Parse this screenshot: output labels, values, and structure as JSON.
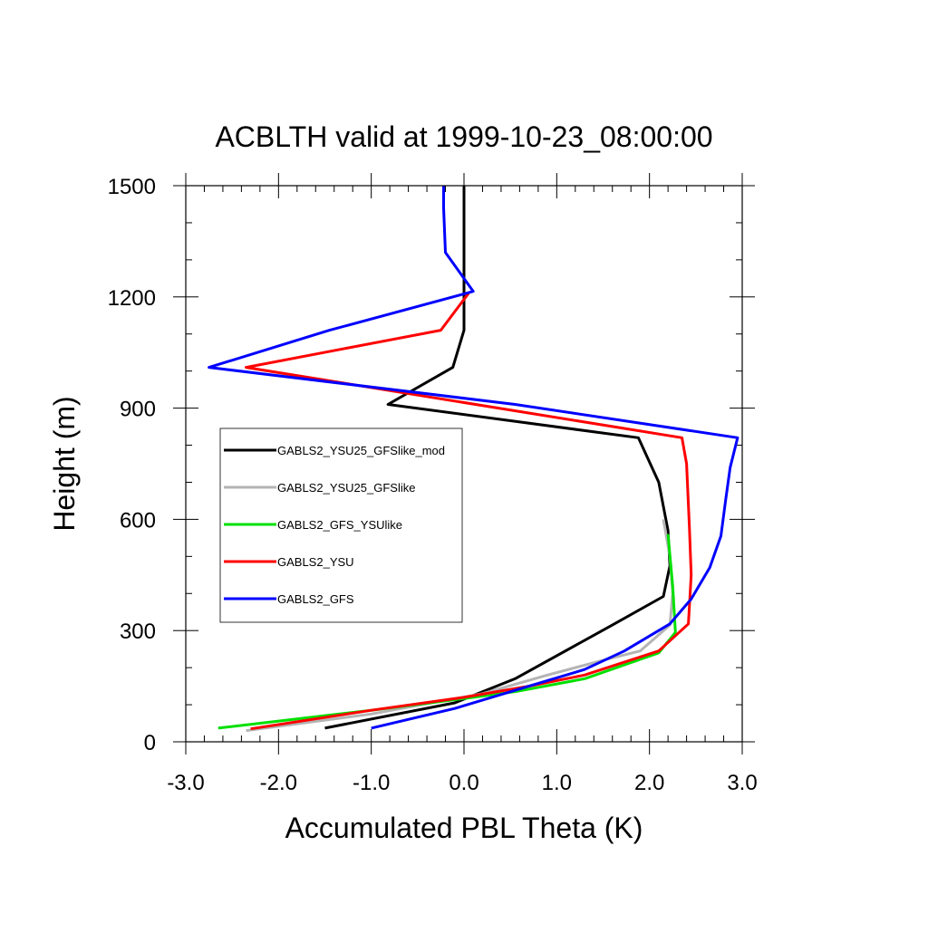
{
  "chart_data": {
    "type": "line",
    "title": "ACBLTH valid at 1999-10-23_08:00:00",
    "xlabel": "Accumulated PBL Theta (K)",
    "ylabel": "Height (m)",
    "xlim": [
      -3.0,
      3.0
    ],
    "ylim": [
      0,
      1500
    ],
    "x_ticks": [
      "-3.0",
      "-2.0",
      "-1.0",
      "0.0",
      "1.0",
      "2.0",
      "3.0"
    ],
    "y_ticks": [
      "0",
      "300",
      "600",
      "900",
      "1200",
      "1500"
    ],
    "legend_position": "middle-left",
    "series": [
      {
        "name": "GABLS2_YSU25_GFSlike_mod",
        "color": "#000000",
        "points": [
          [
            -1.5,
            37
          ],
          [
            -0.1,
            105
          ],
          [
            0.55,
            170
          ],
          [
            1.6,
            315
          ],
          [
            2.15,
            392
          ],
          [
            2.22,
            475
          ],
          [
            2.2,
            570
          ],
          [
            2.1,
            700
          ],
          [
            1.88,
            820
          ],
          [
            -0.82,
            910
          ],
          [
            -0.12,
            1010
          ],
          [
            0.0,
            1110
          ],
          [
            0.0,
            1210
          ],
          [
            0.0,
            1500
          ]
        ]
      },
      {
        "name": "GABLS2_YSU25_GFSlike",
        "color": "#b4b4b4",
        "points": [
          [
            -2.35,
            30
          ],
          [
            -1.0,
            75
          ],
          [
            0.2,
            130
          ],
          [
            0.9,
            180
          ],
          [
            1.5,
            220
          ],
          [
            1.9,
            245
          ],
          [
            2.22,
            315
          ],
          [
            2.25,
            400
          ],
          [
            2.22,
            500
          ],
          [
            2.15,
            600
          ]
        ]
      },
      {
        "name": "GABLS2_GFS_YSUlike",
        "color": "#00e000",
        "points": [
          [
            -2.65,
            37
          ],
          [
            -1.0,
            85
          ],
          [
            0.1,
            120
          ],
          [
            0.55,
            135
          ],
          [
            1.3,
            170
          ],
          [
            2.1,
            240
          ],
          [
            2.28,
            295
          ],
          [
            2.25,
            420
          ],
          [
            2.2,
            560
          ]
        ]
      },
      {
        "name": "GABLS2_YSU",
        "color": "#ff0000",
        "points": [
          [
            -2.3,
            35
          ],
          [
            -1.0,
            85
          ],
          [
            0.0,
            120
          ],
          [
            0.7,
            150
          ],
          [
            1.3,
            180
          ],
          [
            2.1,
            245
          ],
          [
            2.42,
            318
          ],
          [
            2.45,
            450
          ],
          [
            2.43,
            580
          ],
          [
            2.4,
            750
          ],
          [
            2.35,
            820
          ],
          [
            -2.35,
            1010
          ],
          [
            -0.25,
            1110
          ],
          [
            0.05,
            1210
          ]
        ]
      },
      {
        "name": "GABLS2_GFS",
        "color": "#0000ff",
        "points": [
          [
            -1.0,
            37
          ],
          [
            -0.1,
            90
          ],
          [
            0.7,
            150
          ],
          [
            1.3,
            195
          ],
          [
            1.73,
            245
          ],
          [
            2.22,
            318
          ],
          [
            2.45,
            385
          ],
          [
            2.65,
            470
          ],
          [
            2.77,
            555
          ],
          [
            2.82,
            650
          ],
          [
            2.87,
            740
          ],
          [
            2.95,
            820
          ],
          [
            0.55,
            910
          ],
          [
            -2.75,
            1010
          ],
          [
            -1.45,
            1110
          ],
          [
            0.1,
            1215
          ],
          [
            -0.2,
            1320
          ],
          [
            -0.22,
            1440
          ],
          [
            -0.22,
            1500
          ]
        ]
      }
    ]
  }
}
